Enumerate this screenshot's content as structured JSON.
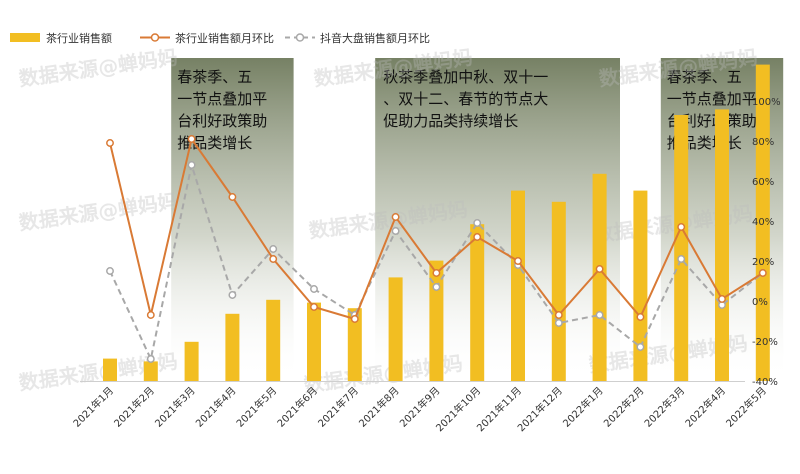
{
  "colors": {
    "bar": "#F2BE22",
    "line_industry": "#D97A35",
    "line_douyin": "#A8A8A8",
    "shade_top": "#6F7A5C",
    "shade_bottom": "#FFFFFF"
  },
  "legend": {
    "bar": "茶行业销售额",
    "line_industry": "茶行业销售额月环比",
    "line_douyin": "抖音大盘销售额月环比"
  },
  "watermark": "数据来源@蝉妈妈",
  "annotations": [
    "春茶季、五一节点叠加平台利好政策助推品类增长",
    "秋茶季叠加中秋、双十一、双十二、春节的节点大促助力品类持续增长",
    "春茶季、五一节点叠加平台利好政策助推品类增长"
  ],
  "chart_data": {
    "type": "bar+line",
    "categories": [
      "2021年1月",
      "2021年2月",
      "2021年3月",
      "2021年4月",
      "2021年5月",
      "2021年6月",
      "2021年7月",
      "2021年8月",
      "2021年9月",
      "2021年10月",
      "2021年11月",
      "2021年12月",
      "2022年1月",
      "2022年2月",
      "2022年3月",
      "2022年4月",
      "2022年5月"
    ],
    "bar_series": {
      "name": "茶行业销售额",
      "values_relative": [
        0.08,
        0.07,
        0.14,
        0.24,
        0.29,
        0.28,
        0.26,
        0.37,
        0.43,
        0.56,
        0.68,
        0.64,
        0.74,
        0.68,
        0.95,
        0.97,
        1.13
      ]
    },
    "line_series": [
      {
        "name": "茶行业销售额月环比",
        "values": [
          79,
          -7,
          81,
          52,
          21,
          -3,
          -9,
          42,
          14,
          32,
          20,
          -7,
          16,
          -8,
          37,
          1,
          14
        ]
      },
      {
        "name": "抖音大盘销售额月环比",
        "values": [
          15,
          -29,
          68,
          3,
          26,
          6,
          -7,
          35,
          7,
          39,
          18,
          -11,
          -7,
          -23,
          21,
          -2,
          14
        ]
      }
    ],
    "y_axis_right": {
      "ticks": [
        "100%",
        "80%",
        "60%",
        "40%",
        "20%",
        "0%",
        "-20%",
        "-40%"
      ],
      "range": [
        -40,
        100
      ]
    },
    "shaded_periods": [
      [
        2,
        4
      ],
      [
        7,
        12
      ],
      [
        14,
        16
      ]
    ]
  }
}
